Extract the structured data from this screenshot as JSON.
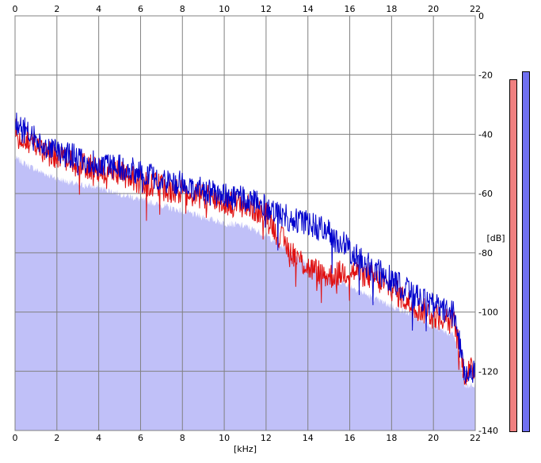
{
  "chart_data": {
    "type": "area",
    "title": "",
    "xlabel": "[kHz]",
    "ylabel": "[dB]",
    "xlim": [
      0,
      22
    ],
    "ylim": [
      -140,
      0
    ],
    "xticks": [
      "0",
      "2",
      "4",
      "6",
      "8",
      "10",
      "12",
      "14",
      "16",
      "18",
      "20",
      "22"
    ],
    "yticks": [
      "0",
      "-20",
      "-40",
      "-60",
      "-80",
      "-100",
      "-120",
      "-140"
    ],
    "grid": true,
    "x": [
      0,
      1,
      2,
      3,
      4,
      5,
      6,
      7,
      8,
      9,
      10,
      11,
      12,
      13,
      14,
      15,
      16,
      17,
      18,
      19,
      20,
      21,
      21.5,
      22
    ],
    "series": [
      {
        "name": "",
        "color": "#0000cc",
        "values": [
          -36,
          -42,
          -46,
          -48,
          -50,
          -51,
          -53,
          -55,
          -57,
          -59,
          -61,
          -62,
          -64,
          -68,
          -70,
          -73,
          -79,
          -85,
          -89,
          -94,
          -98,
          -101,
          -120,
          -120
        ]
      },
      {
        "name": "",
        "color": "#e01010",
        "values": [
          -38,
          -44,
          -48,
          -50,
          -52,
          -53,
          -56,
          -58,
          -60,
          -61,
          -63,
          -64,
          -67,
          -78,
          -85,
          -88,
          -86,
          -88,
          -92,
          -98,
          -101,
          -104,
          -121,
          -119
        ]
      },
      {
        "name": "",
        "color": "#c0c0f8",
        "values": [
          -48,
          -52,
          -55,
          -57,
          -58,
          -60,
          -62,
          -64,
          -66,
          -68,
          -70,
          -71,
          -74,
          -79,
          -84,
          -88,
          -91,
          -95,
          -98,
          -101,
          -105,
          -108,
          -125,
          -125
        ]
      }
    ],
    "level_meters": [
      {
        "color": "#f08080",
        "level": 0.9
      },
      {
        "color": "#7070f0",
        "level": 0.92
      }
    ]
  }
}
